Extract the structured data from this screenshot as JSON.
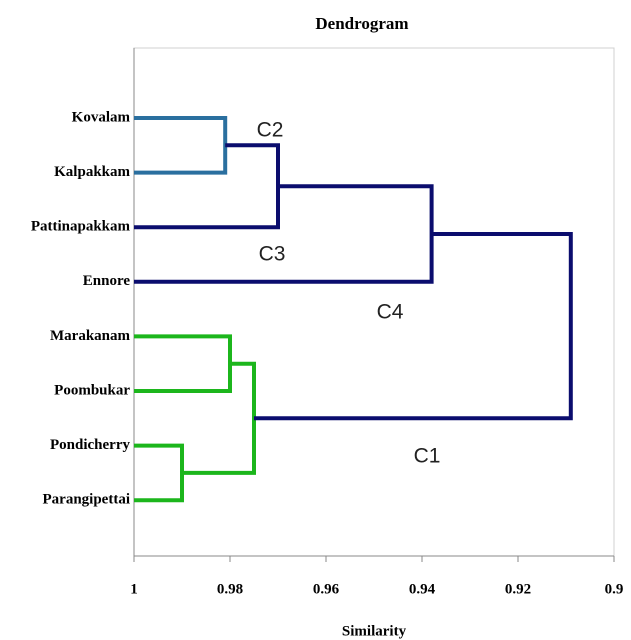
{
  "chart_data": {
    "type": "dendrogram",
    "title": "Dendrogram",
    "x_label": "Similarity",
    "leaves": [
      "Kovalam",
      "Kalpakkam",
      "Pattinapakkam",
      "Ennore",
      "Marakanam",
      "Poombukar",
      "Pondicherry",
      "Parangipettai"
    ],
    "merges": [
      {
        "children": [
          0,
          1
        ],
        "height": 0.981,
        "color": "#2a6f9f",
        "label": "C2"
      },
      {
        "children": [
          8,
          2
        ],
        "height": 0.97,
        "color": "#0b0d6e",
        "label": "C3"
      },
      {
        "children": [
          9,
          3
        ],
        "height": 0.938,
        "color": "#0b0d6e",
        "label": "C4"
      },
      {
        "children": [
          4,
          5
        ],
        "height": 0.98,
        "color": "#1cb61c"
      },
      {
        "children": [
          6,
          7
        ],
        "height": 0.99,
        "color": "#1cb61c"
      },
      {
        "children": [
          11,
          12
        ],
        "height": 0.975,
        "color": "#1cb61c"
      },
      {
        "children": [
          10,
          13
        ],
        "height": 0.909,
        "color": "#0b0d6e",
        "label": "C1"
      }
    ],
    "xlim": [
      1,
      0.9
    ],
    "xticks": [
      1,
      0.98,
      0.96,
      0.94,
      0.92,
      0.9
    ]
  }
}
